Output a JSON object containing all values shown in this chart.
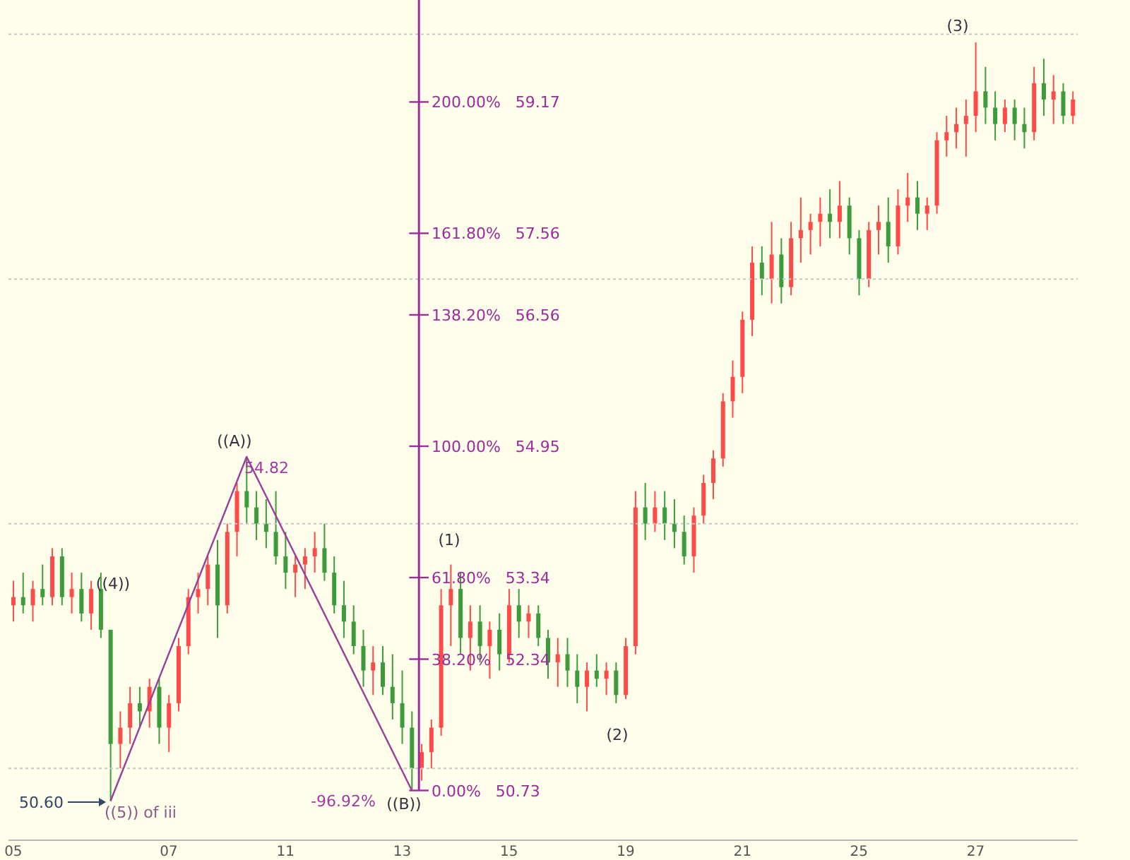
{
  "chart_data": {
    "type": "candlestick",
    "categories": [
      "05",
      null,
      null,
      null,
      null,
      null,
      null,
      null,
      null,
      null,
      null,
      null,
      null,
      null,
      null,
      null,
      "07",
      null,
      null,
      null,
      null,
      null,
      null,
      null,
      null,
      null,
      null,
      null,
      "11",
      null,
      null,
      null,
      null,
      null,
      null,
      null,
      null,
      null,
      null,
      null,
      "13",
      null,
      null,
      null,
      null,
      null,
      null,
      null,
      null,
      null,
      null,
      "15",
      null,
      null,
      null,
      null,
      null,
      null,
      null,
      null,
      null,
      null,
      null,
      "19",
      null,
      null,
      null,
      null,
      null,
      null,
      null,
      null,
      null,
      null,
      null,
      "21",
      null,
      null,
      null,
      null,
      null,
      null,
      null,
      null,
      null,
      null,
      null,
      "25",
      null,
      null,
      null,
      null,
      null,
      null,
      null,
      null,
      null,
      null,
      null,
      "27",
      null,
      null,
      null,
      null,
      null,
      null,
      null,
      null,
      null,
      null
    ],
    "ohlc": [
      [
        53.0,
        53.3,
        52.8,
        53.1
      ],
      [
        53.1,
        53.4,
        52.9,
        53.0
      ],
      [
        53.0,
        53.3,
        52.8,
        53.2
      ],
      [
        53.2,
        53.5,
        53.0,
        53.1
      ],
      [
        53.1,
        53.7,
        53.0,
        53.6
      ],
      [
        53.6,
        53.7,
        53.0,
        53.1
      ],
      [
        53.1,
        53.4,
        52.9,
        53.2
      ],
      [
        53.2,
        53.4,
        52.8,
        52.9
      ],
      [
        52.9,
        53.3,
        52.7,
        53.2
      ],
      [
        53.2,
        53.4,
        52.6,
        52.7
      ],
      [
        52.7,
        52.7,
        50.6,
        51.3
      ],
      [
        51.3,
        51.7,
        51.0,
        51.5
      ],
      [
        51.5,
        52.0,
        51.3,
        51.8
      ],
      [
        51.8,
        52.0,
        51.5,
        51.7
      ],
      [
        51.7,
        52.1,
        51.5,
        52.0
      ],
      [
        52.0,
        52.1,
        51.3,
        51.5
      ],
      [
        51.5,
        51.9,
        51.2,
        51.8
      ],
      [
        51.8,
        52.6,
        51.7,
        52.5
      ],
      [
        52.5,
        53.2,
        52.4,
        53.1
      ],
      [
        53.1,
        53.4,
        52.9,
        53.2
      ],
      [
        53.2,
        53.6,
        53.0,
        53.5
      ],
      [
        53.5,
        53.8,
        52.6,
        53.0
      ],
      [
        53.0,
        54.0,
        52.9,
        53.9
      ],
      [
        53.9,
        54.5,
        53.6,
        54.4
      ],
      [
        54.4,
        54.82,
        54.0,
        54.2
      ],
      [
        54.2,
        54.4,
        53.8,
        54.0
      ],
      [
        54.0,
        54.3,
        53.7,
        53.9
      ],
      [
        53.9,
        54.4,
        53.5,
        53.6
      ],
      [
        53.6,
        53.9,
        53.2,
        53.4
      ],
      [
        53.4,
        53.6,
        53.1,
        53.5
      ],
      [
        53.5,
        53.7,
        53.2,
        53.6
      ],
      [
        53.6,
        53.9,
        53.4,
        53.7
      ],
      [
        53.7,
        54.0,
        53.3,
        53.4
      ],
      [
        53.4,
        53.6,
        52.9,
        53.0
      ],
      [
        53.0,
        53.3,
        52.6,
        52.8
      ],
      [
        52.8,
        53.0,
        52.4,
        52.5
      ],
      [
        52.5,
        52.7,
        52.0,
        52.2
      ],
      [
        52.2,
        52.5,
        51.9,
        52.3
      ],
      [
        52.3,
        52.5,
        51.9,
        52.0
      ],
      [
        52.0,
        52.4,
        51.6,
        51.8
      ],
      [
        51.8,
        52.2,
        51.3,
        51.5
      ],
      [
        51.5,
        51.7,
        50.73,
        51.0
      ],
      [
        51.0,
        51.3,
        50.85,
        51.2
      ],
      [
        51.2,
        51.6,
        51.0,
        51.5
      ],
      [
        51.5,
        53.2,
        51.4,
        53.0
      ],
      [
        53.0,
        53.5,
        52.5,
        53.2
      ],
      [
        53.2,
        53.4,
        52.4,
        52.6
      ],
      [
        52.6,
        53.0,
        52.2,
        52.8
      ],
      [
        52.8,
        53.0,
        52.3,
        52.5
      ],
      [
        52.5,
        52.8,
        52.1,
        52.7
      ],
      [
        52.7,
        52.9,
        52.2,
        52.4
      ],
      [
        52.4,
        53.2,
        52.3,
        53.0
      ],
      [
        53.0,
        53.2,
        52.6,
        52.8
      ],
      [
        52.8,
        53.0,
        52.6,
        52.9
      ],
      [
        52.9,
        53.0,
        52.5,
        52.6
      ],
      [
        52.6,
        52.7,
        52.1,
        52.3
      ],
      [
        52.3,
        52.6,
        52.0,
        52.4
      ],
      [
        52.4,
        52.6,
        52.0,
        52.2
      ],
      [
        52.2,
        52.4,
        51.8,
        52.0
      ],
      [
        52.0,
        52.3,
        51.7,
        52.2
      ],
      [
        52.2,
        52.4,
        52.0,
        52.1
      ],
      [
        52.1,
        52.3,
        51.9,
        52.2
      ],
      [
        52.2,
        52.3,
        51.8,
        51.9
      ],
      [
        51.9,
        52.6,
        51.85,
        52.5
      ],
      [
        52.5,
        54.4,
        52.4,
        54.2
      ],
      [
        54.2,
        54.5,
        53.8,
        54.0
      ],
      [
        54.0,
        54.4,
        53.9,
        54.2
      ],
      [
        54.2,
        54.4,
        53.8,
        54.0
      ],
      [
        54.0,
        54.3,
        53.7,
        53.9
      ],
      [
        53.9,
        54.1,
        53.5,
        53.6
      ],
      [
        53.6,
        54.2,
        53.4,
        54.1
      ],
      [
        54.1,
        54.6,
        54.0,
        54.5
      ],
      [
        54.5,
        54.9,
        54.3,
        54.8
      ],
      [
        54.8,
        55.6,
        54.7,
        55.5
      ],
      [
        55.5,
        56.0,
        55.3,
        55.8
      ],
      [
        55.8,
        56.6,
        55.6,
        56.5
      ],
      [
        56.5,
        57.4,
        56.3,
        57.2
      ],
      [
        57.2,
        57.4,
        56.8,
        57.0
      ],
      [
        57.0,
        57.7,
        56.7,
        57.3
      ],
      [
        57.3,
        57.5,
        56.7,
        56.9
      ],
      [
        56.9,
        57.7,
        56.8,
        57.5
      ],
      [
        57.5,
        58.0,
        57.2,
        57.6
      ],
      [
        57.6,
        57.8,
        57.3,
        57.7
      ],
      [
        57.7,
        58.0,
        57.4,
        57.8
      ],
      [
        57.8,
        58.1,
        57.5,
        57.7
      ],
      [
        57.7,
        58.2,
        57.5,
        57.9
      ],
      [
        57.9,
        58.0,
        57.3,
        57.5
      ],
      [
        57.5,
        57.6,
        56.8,
        57.0
      ],
      [
        57.0,
        57.7,
        56.9,
        57.6
      ],
      [
        57.6,
        57.9,
        57.3,
        57.7
      ],
      [
        57.7,
        58.0,
        57.2,
        57.4
      ],
      [
        57.4,
        58.1,
        57.3,
        57.9
      ],
      [
        57.9,
        58.3,
        57.7,
        58.0
      ],
      [
        58.0,
        58.2,
        57.6,
        57.8
      ],
      [
        57.8,
        58.0,
        57.6,
        57.9
      ],
      [
        57.9,
        58.8,
        57.8,
        58.7
      ],
      [
        58.7,
        59.0,
        58.5,
        58.8
      ],
      [
        58.8,
        59.1,
        58.6,
        58.9
      ],
      [
        58.9,
        59.2,
        58.5,
        59.0
      ],
      [
        59.0,
        59.9,
        58.8,
        59.3
      ],
      [
        59.3,
        59.6,
        58.9,
        59.1
      ],
      [
        59.1,
        59.3,
        58.7,
        58.9
      ],
      [
        58.9,
        59.2,
        58.8,
        59.1
      ],
      [
        59.1,
        59.2,
        58.7,
        58.9
      ],
      [
        58.9,
        59.1,
        58.6,
        58.8
      ],
      [
        58.8,
        59.6,
        58.7,
        59.4
      ],
      [
        59.4,
        59.7,
        59.0,
        59.2
      ],
      [
        59.2,
        59.5,
        58.9,
        59.3
      ],
      [
        59.3,
        59.4,
        58.9,
        59.0
      ],
      [
        59.0,
        59.3,
        58.9,
        59.2
      ]
    ],
    "colors": [
      "#ff4a4a",
      "#3c9c3c",
      "#ff4a4a",
      "#3c9c3c",
      "#ff4a4a",
      "#3c9c3c",
      "#ff4a4a",
      "#3c9c3c",
      "#ff4a4a",
      "#3c9c3c",
      "#3c9c3c",
      "#ff4a4a",
      "#ff4a4a",
      "#3c9c3c",
      "#ff4a4a",
      "#3c9c3c",
      "#ff4a4a",
      "#ff4a4a",
      "#ff4a4a",
      "#ff4a4a",
      "#ff4a4a",
      "#3c9c3c",
      "#ff4a4a",
      "#ff4a4a",
      "#3c9c3c",
      "#3c9c3c",
      "#3c9c3c",
      "#3c9c3c",
      "#3c9c3c",
      "#ff4a4a",
      "#ff4a4a",
      "#ff4a4a",
      "#3c9c3c",
      "#3c9c3c",
      "#3c9c3c",
      "#3c9c3c",
      "#3c9c3c",
      "#ff4a4a",
      "#3c9c3c",
      "#3c9c3c",
      "#3c9c3c",
      "#3c9c3c",
      "#ff4a4a",
      "#ff4a4a",
      "#ff4a4a",
      "#ff4a4a",
      "#3c9c3c",
      "#ff4a4a",
      "#3c9c3c",
      "#ff4a4a",
      "#3c9c3c",
      "#ff4a4a",
      "#3c9c3c",
      "#ff4a4a",
      "#3c9c3c",
      "#3c9c3c",
      "#ff4a4a",
      "#3c9c3c",
      "#3c9c3c",
      "#ff4a4a",
      "#3c9c3c",
      "#ff4a4a",
      "#3c9c3c",
      "#ff4a4a",
      "#ff4a4a",
      "#3c9c3c",
      "#ff4a4a",
      "#3c9c3c",
      "#3c9c3c",
      "#3c9c3c",
      "#ff4a4a",
      "#ff4a4a",
      "#ff4a4a",
      "#ff4a4a",
      "#ff4a4a",
      "#ff4a4a",
      "#ff4a4a",
      "#3c9c3c",
      "#ff4a4a",
      "#3c9c3c",
      "#ff4a4a",
      "#ff4a4a",
      "#ff4a4a",
      "#ff4a4a",
      "#3c9c3c",
      "#ff4a4a",
      "#3c9c3c",
      "#3c9c3c",
      "#ff4a4a",
      "#ff4a4a",
      "#3c9c3c",
      "#ff4a4a",
      "#ff4a4a",
      "#3c9c3c",
      "#ff4a4a",
      "#ff4a4a",
      "#ff4a4a",
      "#ff4a4a",
      "#ff4a4a",
      "#ff4a4a",
      "#3c9c3c",
      "#3c9c3c",
      "#ff4a4a",
      "#3c9c3c",
      "#3c9c3c",
      "#ff4a4a",
      "#3c9c3c",
      "#ff4a4a",
      "#3c9c3c",
      "#ff4a4a"
    ],
    "series": [
      {
        "type": "line",
        "color": "#9b3d9b",
        "values": [
          null,
          null,
          null,
          null,
          null,
          null,
          null,
          null,
          null,
          null,
          50.6,
          null,
          null,
          null,
          null,
          null,
          null,
          null,
          null,
          null,
          null,
          null,
          null,
          null,
          54.82,
          null,
          null,
          null,
          null,
          null,
          null,
          null,
          null,
          null,
          null,
          null,
          null,
          null,
          null,
          null,
          null,
          50.73,
          null,
          null,
          null,
          null,
          null,
          null,
          null,
          null,
          null,
          null,
          null,
          null,
          null,
          null,
          null,
          null,
          null,
          null,
          null,
          null,
          null,
          null,
          null,
          null,
          null,
          null,
          null,
          null,
          null,
          null,
          null,
          null,
          null,
          null,
          null,
          null,
          null,
          null,
          null,
          null,
          null,
          null,
          null,
          null,
          null,
          null,
          null,
          null,
          null,
          null,
          null,
          null,
          null,
          null,
          null,
          null,
          null,
          null,
          null,
          null,
          null,
          null,
          null,
          null,
          null,
          null,
          null,
          null
        ]
      }
    ],
    "ylim": [
      50.12,
      60.42
    ],
    "yticks": [
      {
        "value": 51,
        "label": null
      },
      {
        "value": 54,
        "label": null
      },
      {
        "value": 57,
        "label": null
      },
      {
        "value": 60,
        "label": null
      }
    ],
    "grid": "y",
    "tick_labels": "x",
    "ref_lines": [
      {
        "axis": "y",
        "value": 59.17,
        "label": "200.00%   59.17",
        "color": "#9b2d9b"
      },
      {
        "axis": "y",
        "value": 57.56,
        "label": "161.80%   57.56",
        "color": "#9b2d9b"
      },
      {
        "axis": "y",
        "value": 56.56,
        "label": "138.20%   56.56",
        "color": "#9b2d9b"
      },
      {
        "axis": "y",
        "value": 54.95,
        "label": "100.00%   54.95",
        "color": "#9b2d9b"
      },
      {
        "axis": "y",
        "value": 53.34,
        "label": "61.80%   53.34",
        "color": "#9b2d9b"
      },
      {
        "axis": "y",
        "value": 52.34,
        "label": "38.20%   52.34",
        "color": "#9b2d9b"
      },
      {
        "axis": "y",
        "value": 50.73,
        "label": "0.00%   50.73",
        "color": "#9b2d9b"
      }
    ],
    "annotations": [
      "((4))",
      "50.60",
      "((5)) of iii",
      "((A))",
      "54.82",
      "-96.92%",
      "((B))",
      "(1)",
      "(2)",
      "(3)"
    ]
  }
}
